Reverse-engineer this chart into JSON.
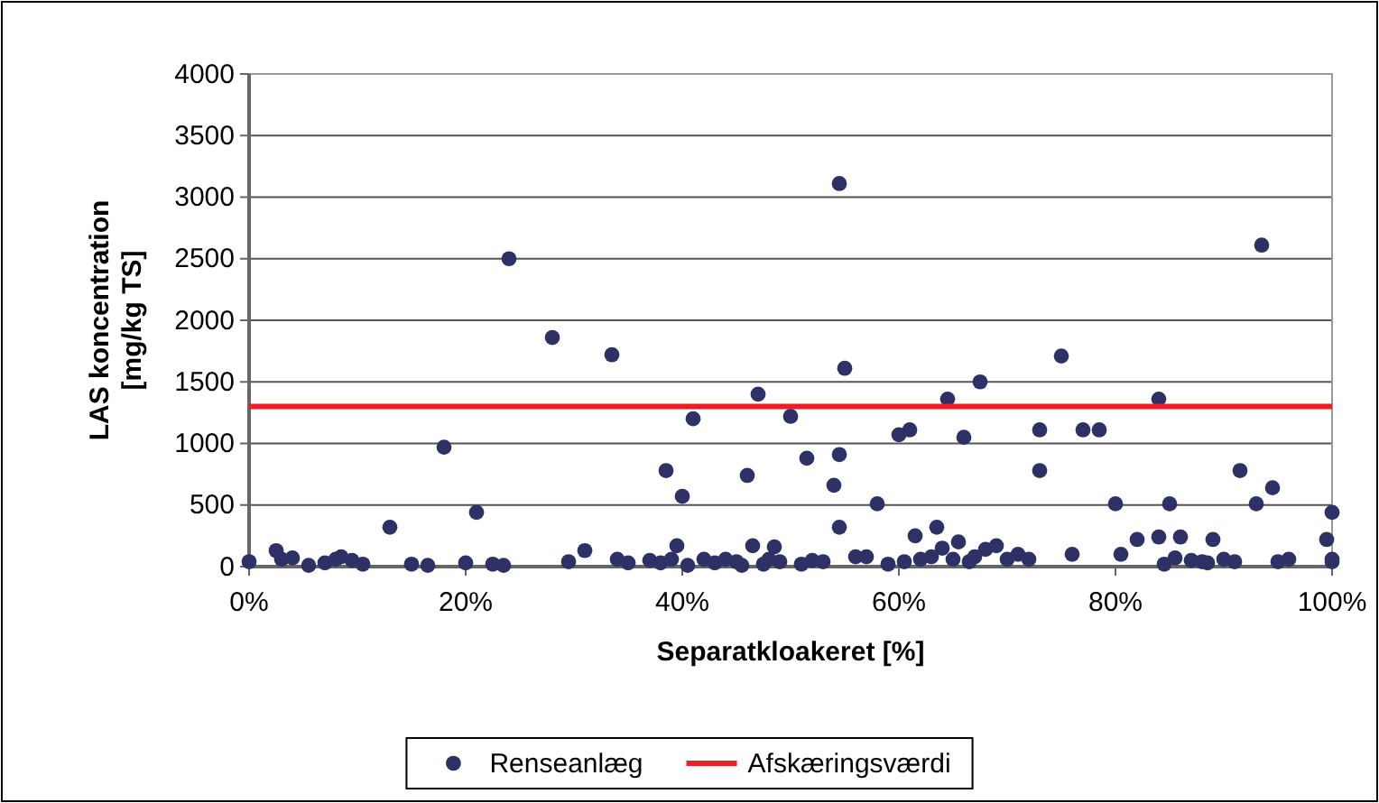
{
  "chart_data": {
    "type": "scatter",
    "xlabel": "Separatkloakeret [%]",
    "ylabel": "LAS koncentration [mg/kg TS]",
    "xlim": [
      0,
      100
    ],
    "ylim": [
      0,
      4000
    ],
    "xticks": [
      {
        "value": 0,
        "label": "0%"
      },
      {
        "value": 20,
        "label": "20%"
      },
      {
        "value": 40,
        "label": "40%"
      },
      {
        "value": 60,
        "label": "60%"
      },
      {
        "value": 80,
        "label": "80%"
      },
      {
        "value": 100,
        "label": "100%"
      }
    ],
    "yticks": [
      0,
      500,
      1000,
      1500,
      2000,
      2500,
      3000,
      3500,
      4000
    ],
    "grid": "y",
    "legend": "bottom",
    "marker": "circle",
    "series": [
      {
        "name": "Renseanlæg",
        "color": "#2e3166",
        "x": [
          0,
          2.5,
          3,
          4,
          5.5,
          7,
          8,
          8.5,
          9.5,
          10.5,
          13,
          15,
          16.5,
          18,
          20,
          21,
          22.5,
          23.5,
          24,
          28,
          29.5,
          31,
          33.5,
          34,
          35,
          37,
          38,
          38.5,
          39,
          39.5,
          40,
          40.5,
          41,
          42,
          43,
          44,
          45,
          45.5,
          46,
          46.5,
          47,
          47.5,
          48,
          48.5,
          49,
          50,
          51,
          51.5,
          52,
          53,
          54,
          54.5,
          54.5,
          54.5,
          55,
          56,
          57,
          58,
          59,
          60,
          60.5,
          61,
          61.5,
          62,
          63,
          63.5,
          64,
          64.5,
          65,
          65.5,
          66,
          66.5,
          67,
          67.5,
          68,
          69,
          70,
          71,
          72,
          73,
          73,
          75,
          76,
          77,
          78.5,
          80,
          80.5,
          82,
          84,
          84,
          84.5,
          85,
          85.5,
          86,
          87,
          88,
          88.5,
          89,
          90,
          91,
          91.5,
          93,
          93.5,
          94.5,
          95,
          96,
          99.5,
          100,
          100,
          100
        ],
        "values": [
          40,
          130,
          60,
          70,
          10,
          30,
          60,
          80,
          50,
          20,
          320,
          20,
          10,
          970,
          30,
          440,
          20,
          10,
          2500,
          1860,
          40,
          130,
          1720,
          60,
          30,
          50,
          30,
          780,
          60,
          170,
          570,
          10,
          1200,
          60,
          30,
          60,
          40,
          10,
          740,
          170,
          1400,
          20,
          60,
          160,
          40,
          1220,
          20,
          880,
          50,
          40,
          660,
          910,
          320,
          3110,
          1610,
          80,
          80,
          510,
          20,
          1070,
          40,
          1110,
          250,
          60,
          80,
          320,
          150,
          1360,
          60,
          200,
          1050,
          40,
          80,
          1500,
          140,
          170,
          60,
          100,
          60,
          780,
          1110,
          1710,
          100,
          1110,
          1110,
          510,
          100,
          220,
          1360,
          240,
          20,
          510,
          70,
          240,
          50,
          40,
          30,
          220,
          60,
          40,
          780,
          510,
          2610,
          640,
          40,
          60,
          220,
          440,
          40,
          60
        ]
      },
      {
        "name": "Afskæringsværdi",
        "color": "#ee1c25",
        "type": "line",
        "marker": "none",
        "x": [
          0,
          100
        ],
        "values": [
          1300,
          1300
        ]
      }
    ]
  }
}
